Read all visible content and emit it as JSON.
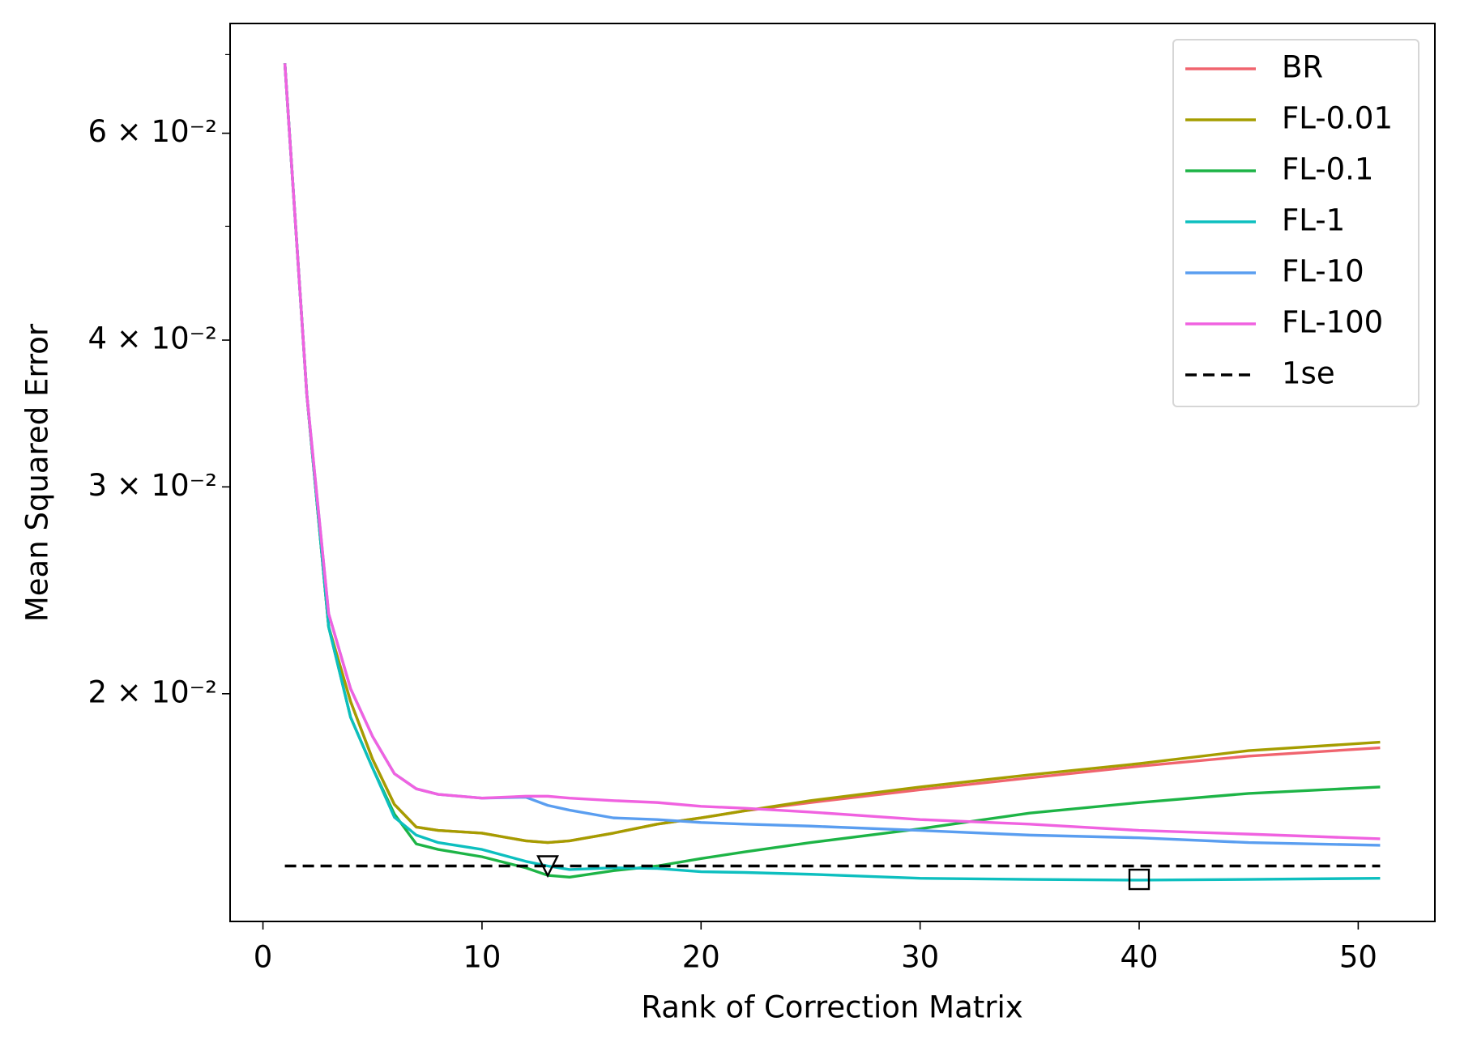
{
  "chart_data": {
    "type": "line",
    "xlabel": "Rank of Correction Matrix",
    "ylabel": "Mean Squared Error",
    "yscale": "log",
    "xlim": [
      -1.5,
      53.5
    ],
    "ylim": [
      0.0128,
      0.0744
    ],
    "xticks": [
      0,
      10,
      20,
      30,
      40,
      50
    ],
    "yticks": [
      {
        "value": 0.02,
        "label": "2 × 10⁻²"
      },
      {
        "value": 0.03,
        "label": "3 × 10⁻²"
      },
      {
        "value": 0.04,
        "label": "4 × 10⁻²"
      },
      {
        "value": 0.06,
        "label": "6 × 10⁻²"
      }
    ],
    "yminor_ticks": [
      0.05,
      0.07
    ],
    "legend": "upper right",
    "x": [
      1,
      2,
      3,
      4,
      5,
      6,
      7,
      8,
      10,
      12,
      13,
      14,
      16,
      18,
      20,
      22,
      25,
      30,
      35,
      40,
      45,
      51
    ],
    "series": [
      {
        "name": "BR",
        "color": "#f0646e",
        "values": [
          0.0688,
          0.036,
          0.0228,
          0.0197,
          0.0176,
          0.0161,
          0.0154,
          0.0153,
          0.01522,
          0.01499,
          0.01494,
          0.01499,
          0.01522,
          0.01549,
          0.01568,
          0.0159,
          0.01616,
          0.01657,
          0.01696,
          0.01735,
          0.0177,
          0.01799
        ]
      },
      {
        "name": "FL-0.01",
        "color": "#a59d00",
        "values": [
          0.0688,
          0.036,
          0.0228,
          0.0197,
          0.0176,
          0.0161,
          0.0154,
          0.0153,
          0.01522,
          0.01499,
          0.01494,
          0.01499,
          0.01522,
          0.01549,
          0.01568,
          0.0159,
          0.01622,
          0.01666,
          0.01706,
          0.01744,
          0.01789,
          0.01819
        ]
      },
      {
        "name": "FL-0.1",
        "color": "#1db446",
        "values": [
          0.0688,
          0.036,
          0.0228,
          0.0191,
          0.0173,
          0.0158,
          0.0149,
          0.01474,
          0.01453,
          0.01422,
          0.01401,
          0.01396,
          0.01414,
          0.01427,
          0.01448,
          0.01467,
          0.01494,
          0.01535,
          0.01583,
          0.01616,
          0.01645,
          0.01666
        ]
      },
      {
        "name": "FL-1",
        "color": "#0dbfbf",
        "values": [
          0.0688,
          0.036,
          0.0228,
          0.0191,
          0.0173,
          0.0157,
          0.01516,
          0.01494,
          0.01474,
          0.0144,
          0.01427,
          0.01417,
          0.01422,
          0.0142,
          0.01411,
          0.01409,
          0.01404,
          0.01393,
          0.0139,
          0.01388,
          0.0139,
          0.01393
        ]
      },
      {
        "name": "FL-10",
        "color": "#5a9ef0",
        "values": [
          0.0688,
          0.036,
          0.0234,
          0.0202,
          0.0184,
          0.0171,
          0.0166,
          0.01642,
          0.0163,
          0.01633,
          0.01607,
          0.01592,
          0.01568,
          0.01563,
          0.01554,
          0.01549,
          0.01543,
          0.0153,
          0.01516,
          0.01508,
          0.01494,
          0.01486
        ]
      },
      {
        "name": "FL-100",
        "color": "#f062e0",
        "values": [
          0.0688,
          0.036,
          0.0234,
          0.0202,
          0.0184,
          0.0171,
          0.0166,
          0.01642,
          0.0163,
          0.01636,
          0.01636,
          0.0163,
          0.01622,
          0.01616,
          0.01604,
          0.01598,
          0.01586,
          0.01563,
          0.01549,
          0.0153,
          0.01519,
          0.01505
        ]
      }
    ],
    "reference_line": {
      "name": "1se",
      "color": "#000000",
      "y": 0.01427,
      "x": [
        1,
        51
      ],
      "dash": true
    },
    "markers": [
      {
        "shape": "triangle-down",
        "x": 13,
        "y": 0.01427
      },
      {
        "shape": "square",
        "x": 40,
        "y": 0.0139
      }
    ]
  }
}
